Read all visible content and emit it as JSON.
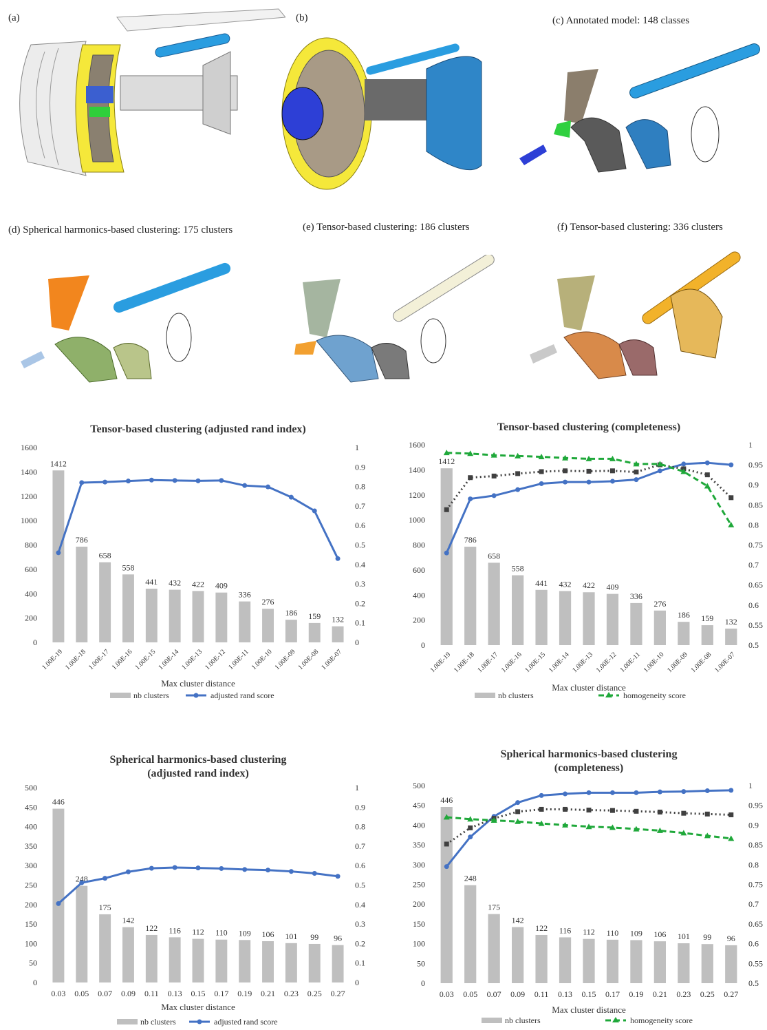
{
  "panels": {
    "a": "(a)",
    "b": "(b)",
    "c": "(c) Annotated model: 148 classes",
    "d": "(d) Spherical harmonics-based clustering: 175 clusters",
    "e": "(e) Tensor-based clustering: 186 clusters",
    "f": "(f) Tensor-based clustering: 336 clusters"
  },
  "colors": {
    "bars": "#bfbfbf",
    "adjusted_rand": "#4472c4",
    "completeness": "#404040",
    "homogeneity": "#1fa83a"
  },
  "chart_data": [
    {
      "type": "bar",
      "title": "Tensor-based clustering (adjusted rand index)",
      "xlabel": "Max cluster distance",
      "categories": [
        "1.00E-19",
        "1.00E-18",
        "1.00E-17",
        "1.00E-16",
        "1.00E-15",
        "1.00E-14",
        "1.00E-13",
        "1.00E-12",
        "1.00E-11",
        "1.00E-10",
        "1.00E-09",
        "1.00E-08",
        "1.00E-07"
      ],
      "y_left": {
        "min": 0,
        "max": 1600,
        "step": 200
      },
      "y_right": {
        "min": 0,
        "max": 1,
        "step": 0.1
      },
      "bars": {
        "name": "nb clusters",
        "values": [
          1412,
          786,
          658,
          558,
          441,
          432,
          422,
          409,
          336,
          276,
          186,
          159,
          132
        ]
      },
      "lines": [
        {
          "name": "adjusted rand score",
          "axis": "right",
          "style": "solid",
          "marker": "circle",
          "color": "#4472c4",
          "values": [
            0.46,
            0.82,
            0.823,
            0.828,
            0.833,
            0.831,
            0.829,
            0.831,
            0.805,
            0.798,
            0.745,
            0.675,
            0.43
          ]
        }
      ],
      "legend": [
        "nb clusters",
        "adjusted rand score"
      ]
    },
    {
      "type": "bar",
      "title": "Tensor-based clustering (completeness)",
      "xlabel": "Max cluster distance",
      "categories": [
        "1.00E-19",
        "1.00E-18",
        "1.00E-17",
        "1.00E-16",
        "1.00E-15",
        "1.00E-14",
        "1.00E-13",
        "1.00E-12",
        "1.00E-11",
        "1.00E-10",
        "1.00E-09",
        "1.00E-08",
        "1.00E-07"
      ],
      "y_left": {
        "min": 0,
        "max": 1600,
        "step": 200
      },
      "y_right": {
        "min": 0.5,
        "max": 1,
        "step": 0.05
      },
      "bars": {
        "name": "nb clusters",
        "values": [
          1412,
          786,
          658,
          558,
          441,
          432,
          422,
          409,
          336,
          276,
          186,
          159,
          132
        ]
      },
      "lines": [
        {
          "name": "",
          "axis": "right",
          "style": "solid",
          "marker": "circle",
          "color": "#4472c4",
          "values": [
            0.73,
            0.865,
            0.873,
            0.888,
            0.903,
            0.907,
            0.907,
            0.909,
            0.913,
            0.935,
            0.952,
            0.955,
            0.95
          ]
        },
        {
          "name": "",
          "axis": "right",
          "style": "dotted",
          "marker": "square",
          "color": "#404040",
          "values": [
            0.838,
            0.918,
            0.922,
            0.928,
            0.933,
            0.935,
            0.934,
            0.935,
            0.932,
            0.95,
            0.94,
            0.925,
            0.868
          ]
        },
        {
          "name": "homogeneity score",
          "axis": "right",
          "style": "dashed",
          "marker": "triangle",
          "color": "#1fa83a",
          "values": [
            0.98,
            0.978,
            0.974,
            0.972,
            0.97,
            0.967,
            0.965,
            0.965,
            0.952,
            0.952,
            0.933,
            0.897,
            0.8
          ]
        }
      ],
      "legend": [
        "nb clusters",
        "homogeneity score"
      ]
    },
    {
      "type": "bar",
      "title": "Spherical harmonics-based clustering (adjusted rand index)",
      "title_lines": [
        "Spherical harmonics-based clustering",
        "(adjusted rand index)"
      ],
      "xlabel": "Max cluster distance",
      "categories": [
        "0.03",
        "0.05",
        "0.07",
        "0.09",
        "0.11",
        "0.13",
        "0.15",
        "0.17",
        "0.19",
        "0.21",
        "0.23",
        "0.25",
        "0.27"
      ],
      "y_left": {
        "min": 0,
        "max": 500,
        "step": 50
      },
      "y_right": {
        "min": 0,
        "max": 1,
        "step": 0.1
      },
      "bars": {
        "name": "nb clusters",
        "values": [
          446,
          248,
          175,
          142,
          122,
          116,
          112,
          110,
          109,
          106,
          101,
          99,
          96
        ]
      },
      "lines": [
        {
          "name": "adjusted rand score",
          "axis": "right",
          "style": "solid",
          "marker": "circle",
          "color": "#4472c4",
          "values": [
            0.405,
            0.512,
            0.535,
            0.568,
            0.586,
            0.59,
            0.588,
            0.585,
            0.58,
            0.577,
            0.57,
            0.56,
            0.545
          ]
        }
      ],
      "legend": [
        "nb clusters",
        "adjusted rand score"
      ]
    },
    {
      "type": "bar",
      "title": "Spherical harmonics-based clustering (completeness)",
      "title_lines": [
        "Spherical harmonics-based clustering",
        "(completeness)"
      ],
      "xlabel": "Max cluster distance",
      "categories": [
        "0.03",
        "0.05",
        "0.07",
        "0.09",
        "0.11",
        "0.13",
        "0.15",
        "0.17",
        "0.19",
        "0.21",
        "0.23",
        "0.25",
        "0.27"
      ],
      "y_left": {
        "min": 0,
        "max": 500,
        "step": 50
      },
      "y_right": {
        "min": 0.5,
        "max": 1,
        "step": 0.05
      },
      "bars": {
        "name": "nb clusters",
        "values": [
          446,
          248,
          175,
          142,
          122,
          116,
          112,
          110,
          109,
          106,
          101,
          99,
          96
        ]
      },
      "lines": [
        {
          "name": "",
          "axis": "right",
          "style": "solid",
          "marker": "circle",
          "color": "#4472c4",
          "values": [
            0.795,
            0.87,
            0.922,
            0.957,
            0.975,
            0.979,
            0.982,
            0.982,
            0.982,
            0.984,
            0.985,
            0.987,
            0.988
          ]
        },
        {
          "name": "",
          "axis": "right",
          "style": "dotted",
          "marker": "square",
          "color": "#404040",
          "values": [
            0.852,
            0.893,
            0.917,
            0.934,
            0.94,
            0.94,
            0.938,
            0.937,
            0.935,
            0.933,
            0.93,
            0.928,
            0.926
          ]
        },
        {
          "name": "homogeneity score",
          "axis": "right",
          "style": "dashed",
          "marker": "triangle",
          "color": "#1fa83a",
          "values": [
            0.92,
            0.915,
            0.912,
            0.909,
            0.904,
            0.9,
            0.896,
            0.894,
            0.89,
            0.886,
            0.88,
            0.873,
            0.866
          ]
        }
      ],
      "legend": [
        "nb clusters",
        "homogeneity score"
      ]
    }
  ]
}
